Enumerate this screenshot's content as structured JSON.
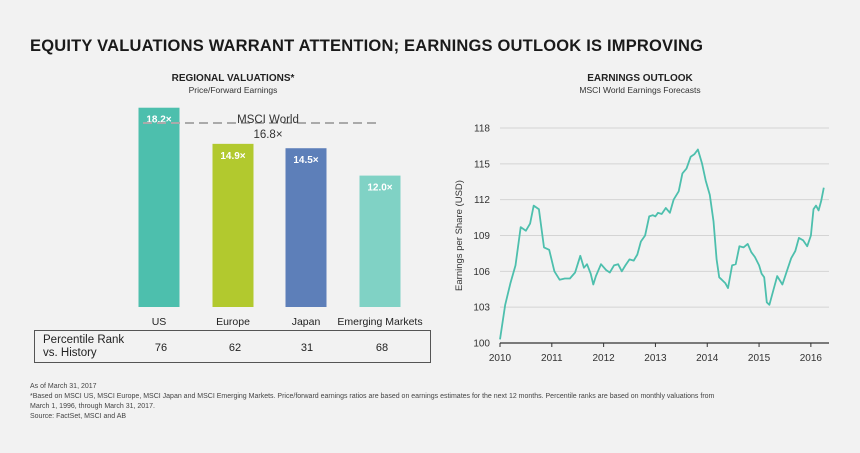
{
  "main_title": "EQUITY VALUATIONS WARRANT ATTENTION; EARNINGS OUTLOOK IS IMPROVING",
  "left_panel": {
    "title": "REGIONAL VALUATIONS*",
    "subtitle": "Price/Forward Earnings",
    "reference_label": "MSCI World",
    "reference_value_label": "16.8×",
    "rank_label_line1": "Percentile Rank",
    "rank_label_line2": "vs. History",
    "ranks": [
      "76",
      "62",
      "31",
      "68"
    ]
  },
  "right_panel": {
    "title": "EARNINGS OUTLOOK",
    "subtitle": "MSCI World Earnings Forecasts",
    "ylabel": "Earnings per Share (USD)"
  },
  "footnotes": {
    "line1": "As of March 31, 2017",
    "line2": "*Based on MSCI US, MSCI Europe, MSCI Japan and MSCI Emerging Markets. Price/forward earnings ratios are based on earnings estimates for the next 12 months. Percentile ranks are based on monthly valuations from",
    "line3": "March 1, 1996, through March 31, 2017.",
    "line4": "Source: FactSet, MSCI and AB"
  },
  "chart_data": [
    {
      "type": "bar",
      "title": "REGIONAL VALUATIONS*",
      "subtitle": "Price/Forward Earnings",
      "categories": [
        "US",
        "Europe",
        "Japan",
        "Emerging Markets"
      ],
      "values": [
        18.2,
        14.9,
        14.5,
        12.0
      ],
      "value_labels": [
        "18.2×",
        "14.9×",
        "14.5×",
        "12.0×"
      ],
      "colors": [
        "#4dbfad",
        "#b2c92e",
        "#5d7fb9",
        "#80d2c5"
      ],
      "reference_line": {
        "label": "MSCI World",
        "value": 16.8
      },
      "ylim": [
        0,
        20
      ],
      "grid": false
    },
    {
      "type": "line",
      "title": "EARNINGS OUTLOOK",
      "subtitle": "MSCI World Earnings Forecasts",
      "xlabel": "",
      "ylabel": "Earnings per Share (USD)",
      "xlim": [
        2010,
        2016.35
      ],
      "ylim": [
        100,
        118
      ],
      "xticks": [
        2010,
        2011,
        2012,
        2013,
        2014,
        2015,
        2016
      ],
      "yticks": [
        100,
        103,
        106,
        109,
        112,
        115,
        118
      ],
      "grid": true,
      "color": "#4dbfad",
      "series": [
        {
          "x": [
            2010.0,
            2010.1,
            2010.2,
            2010.3,
            2010.4,
            2010.5,
            2010.58,
            2010.65,
            2010.75,
            2010.85,
            2010.95,
            2011.05,
            2011.15,
            2011.25,
            2011.35,
            2011.45,
            2011.55,
            2011.62,
            2011.68,
            2011.75,
            2011.8,
            2011.85,
            2011.95,
            2012.05,
            2012.12,
            2012.2,
            2012.28,
            2012.35,
            2012.42,
            2012.5,
            2012.58,
            2012.65,
            2012.72,
            2012.8,
            2012.88,
            2012.95,
            2013.0,
            2013.05,
            2013.12,
            2013.2,
            2013.28,
            2013.35,
            2013.45,
            2013.52,
            2013.6,
            2013.68,
            2013.75,
            2013.82,
            2013.9,
            2013.97,
            2014.05,
            2014.12,
            2014.18,
            2014.23,
            2014.28,
            2014.35,
            2014.4,
            2014.48,
            2014.55,
            2014.62,
            2014.7,
            2014.78,
            2014.85,
            2014.92,
            2015.0,
            2015.05,
            2015.1,
            2015.15,
            2015.2,
            2015.28,
            2015.35,
            2015.45,
            2015.55,
            2015.62,
            2015.7,
            2015.77,
            2015.85,
            2015.93,
            2016.0,
            2016.05,
            2016.1,
            2016.15,
            2016.2,
            2016.25
          ],
          "y": [
            100.3,
            103.2,
            105.0,
            106.5,
            109.7,
            109.4,
            110.0,
            111.5,
            111.2,
            108.0,
            107.8,
            106.0,
            105.3,
            105.4,
            105.4,
            105.9,
            107.3,
            106.3,
            106.6,
            105.8,
            104.9,
            105.6,
            106.6,
            106.1,
            105.9,
            106.5,
            106.6,
            106.0,
            106.5,
            107.0,
            106.9,
            107.4,
            108.5,
            109.0,
            110.6,
            110.7,
            110.6,
            110.9,
            110.8,
            111.3,
            110.9,
            112.0,
            112.7,
            114.2,
            114.6,
            115.6,
            115.8,
            116.2,
            115.0,
            113.6,
            112.4,
            110.2,
            107.0,
            105.5,
            105.3,
            105.0,
            104.6,
            106.5,
            106.6,
            108.1,
            108.0,
            108.3,
            107.6,
            107.2,
            106.5,
            105.8,
            105.5,
            103.4,
            103.2,
            104.5,
            105.6,
            104.9,
            106.2,
            107.1,
            107.7,
            108.8,
            108.6,
            108.1,
            109.0,
            111.2,
            111.5,
            111.1,
            111.9,
            113.0
          ]
        }
      ]
    }
  ]
}
